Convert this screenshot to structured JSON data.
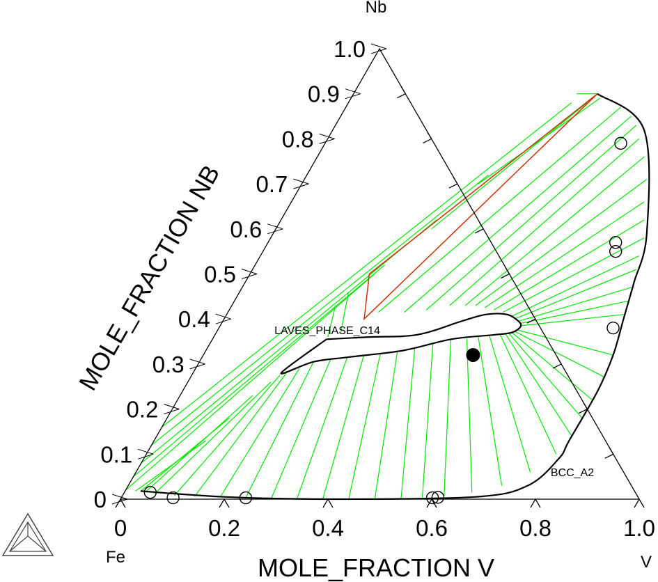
{
  "chart_data": {
    "type": "ternary",
    "corners": {
      "top": "Nb",
      "left": "Fe",
      "right": "V"
    },
    "xlabel": "MOLE_FRACTION V",
    "ylabel": "MOLE_FRACTION NB",
    "x_ticks": [
      "0",
      "0.2",
      "0.4",
      "0.6",
      "0.8",
      "1.0"
    ],
    "y_ticks": [
      "0",
      "0.1",
      "0.2",
      "0.3",
      "0.4",
      "0.5",
      "0.6",
      "0.7",
      "0.8",
      "0.9",
      "1.0"
    ],
    "phase_labels": [
      "LAVES_PHASE_C14",
      "BCC_A2"
    ],
    "colors": {
      "tieline": "#00e600",
      "three_phase": "#cc3300",
      "boundary": "#000000"
    },
    "bcc_boundary": [
      [
        0.47,
        0.9
      ],
      [
        0.6,
        0.82
      ],
      [
        0.72,
        0.59
      ],
      [
        0.75,
        0.48
      ],
      [
        0.77,
        0.4
      ],
      [
        0.79,
        0.32
      ],
      [
        0.8,
        0.24
      ],
      [
        0.8,
        0.13
      ],
      [
        0.8,
        0.09
      ],
      [
        0.77,
        0.03
      ],
      [
        0.68,
        0.005
      ],
      [
        0.4,
        0.0
      ],
      [
        0.2,
        0.005
      ],
      [
        0.03,
        0.018
      ]
    ],
    "laves_region": {
      "upper": [
        [
          0.22,
          0.355
        ],
        [
          0.3,
          0.36
        ],
        [
          0.39,
          0.365
        ],
        [
          0.46,
          0.395
        ],
        [
          0.5,
          0.41
        ],
        [
          0.54,
          0.41
        ],
        [
          0.57,
          0.395
        ]
      ],
      "lower": [
        [
          0.57,
          0.37
        ],
        [
          0.54,
          0.365
        ],
        [
          0.46,
          0.355
        ],
        [
          0.38,
          0.33
        ],
        [
          0.28,
          0.315
        ],
        [
          0.22,
          0.305
        ],
        [
          0.17,
          0.28
        ]
      ],
      "nose": [
        [
          0.57,
          0.395
        ],
        [
          0.58,
          0.383
        ],
        [
          0.57,
          0.37
        ]
      ]
    },
    "three_phase_triangle": [
      [
        0.47,
        0.9
      ],
      [
        0.23,
        0.5
      ],
      [
        0.27,
        0.4
      ]
    ],
    "tielines": {
      "upper": [
        [
          [
            0.43,
            0.9
          ],
          [
            0.47,
            0.9
          ]
        ],
        [
          [
            0.34,
            0.7
          ],
          [
            0.48,
            0.89
          ]
        ],
        [
          [
            0.3,
            0.6
          ],
          [
            0.46,
            0.88
          ]
        ],
        [
          [
            0.23,
            0.5
          ],
          [
            0.47,
            0.9
          ]
        ],
        [
          [
            0.21,
            0.46
          ],
          [
            0.24,
            0.37
          ]
        ],
        [
          [
            0.2,
            0.43
          ],
          [
            0.22,
            0.36
          ]
        ],
        [
          [
            0.29,
            0.415
          ],
          [
            0.53,
            0.87
          ]
        ],
        [
          [
            0.34,
            0.415
          ],
          [
            0.56,
            0.85
          ]
        ],
        [
          [
            0.38,
            0.42
          ],
          [
            0.58,
            0.83
          ]
        ],
        [
          [
            0.42,
            0.43
          ],
          [
            0.6,
            0.8
          ]
        ],
        [
          [
            0.45,
            0.43
          ],
          [
            0.63,
            0.76
          ]
        ],
        [
          [
            0.47,
            0.43
          ],
          [
            0.66,
            0.71
          ]
        ],
        [
          [
            0.49,
            0.425
          ],
          [
            0.68,
            0.66
          ]
        ],
        [
          [
            0.51,
            0.42
          ],
          [
            0.7,
            0.62
          ]
        ],
        [
          [
            0.53,
            0.415
          ],
          [
            0.72,
            0.58
          ]
        ],
        [
          [
            0.55,
            0.405
          ],
          [
            0.73,
            0.54
          ]
        ],
        [
          [
            0.56,
            0.4
          ],
          [
            0.74,
            0.51
          ]
        ],
        [
          [
            0.57,
            0.395
          ],
          [
            0.75,
            0.47
          ]
        ],
        [
          [
            0.575,
            0.39
          ],
          [
            0.76,
            0.44
          ]
        ],
        [
          [
            0.58,
            0.385
          ],
          [
            0.765,
            0.41
          ]
        ]
      ],
      "lower": [
        [
          [
            0.58,
            0.375
          ],
          [
            0.79,
            0.32
          ]
        ],
        [
          [
            0.575,
            0.372
          ],
          [
            0.8,
            0.27
          ]
        ],
        [
          [
            0.57,
            0.37
          ],
          [
            0.8,
            0.22
          ]
        ],
        [
          [
            0.565,
            0.368
          ],
          [
            0.8,
            0.18
          ]
        ],
        [
          [
            0.56,
            0.366
          ],
          [
            0.8,
            0.14
          ]
        ],
        [
          [
            0.55,
            0.365
          ],
          [
            0.79,
            0.1
          ]
        ],
        [
          [
            0.53,
            0.363
          ],
          [
            0.76,
            0.06
          ]
        ],
        [
          [
            0.51,
            0.36
          ],
          [
            0.72,
            0.03
          ]
        ],
        [
          [
            0.49,
            0.356
          ],
          [
            0.67,
            0.015
          ]
        ],
        [
          [
            0.46,
            0.354
          ],
          [
            0.62,
            0.008
          ]
        ],
        [
          [
            0.43,
            0.345
          ],
          [
            0.58,
            0.004
          ]
        ],
        [
          [
            0.4,
            0.335
          ],
          [
            0.54,
            0.002
          ]
        ],
        [
          [
            0.37,
            0.328
          ],
          [
            0.49,
            0.001
          ]
        ],
        [
          [
            0.34,
            0.322
          ],
          [
            0.44,
            0.0
          ]
        ],
        [
          [
            0.31,
            0.318
          ],
          [
            0.39,
            0.0
          ]
        ],
        [
          [
            0.28,
            0.315
          ],
          [
            0.34,
            0.0
          ]
        ],
        [
          [
            0.25,
            0.31
          ],
          [
            0.29,
            0.001
          ]
        ],
        [
          [
            0.22,
            0.305
          ],
          [
            0.24,
            0.002
          ]
        ],
        [
          [
            0.2,
            0.29
          ],
          [
            0.19,
            0.004
          ]
        ],
        [
          [
            0.18,
            0.28
          ],
          [
            0.14,
            0.006
          ]
        ],
        [
          [
            0.17,
            0.275
          ],
          [
            0.1,
            0.008
          ]
        ],
        [
          [
            0.16,
            0.26
          ],
          [
            0.06,
            0.012
          ]
        ],
        [
          [
            0.14,
            0.23
          ],
          [
            0.04,
            0.015
          ]
        ],
        [
          [
            0.12,
            0.18
          ],
          [
            0.03,
            0.017
          ]
        ],
        [
          [
            0.1,
            0.13
          ],
          [
            0.02,
            0.018
          ]
        ]
      ],
      "left_edge": [
        [
          [
            0.0,
            0.02
          ],
          [
            0.24,
            0.5
          ]
        ],
        [
          [
            0.0,
            0.05
          ],
          [
            0.25,
            0.52
          ]
        ],
        [
          [
            0.0,
            0.08
          ],
          [
            0.3,
            0.62
          ]
        ],
        [
          [
            0.0,
            0.12
          ],
          [
            0.35,
            0.72
          ]
        ],
        [
          [
            0.0,
            0.16
          ],
          [
            0.43,
            0.88
          ]
        ]
      ]
    },
    "markers": {
      "open": [
        [
          0.57,
          0.79
        ],
        [
          0.67,
          0.57
        ],
        [
          0.68,
          0.55
        ],
        [
          0.76,
          0.38
        ],
        [
          0.05,
          0.015
        ],
        [
          0.1,
          0.003
        ],
        [
          0.24,
          0.003
        ],
        [
          0.6,
          0.003
        ],
        [
          0.61,
          0.004
        ]
      ],
      "filled": [
        [
          0.52,
          0.32
        ]
      ]
    }
  }
}
